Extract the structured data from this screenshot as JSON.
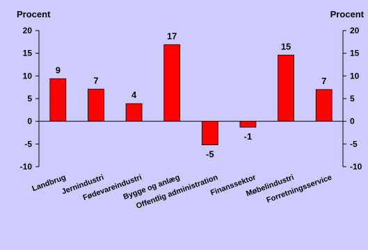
{
  "chart_data": {
    "type": "bar",
    "categories": [
      "Landbrug",
      "Jernindustri",
      "Fødevareindustri",
      "Bygge og anlæg",
      "Offentlig administration",
      "Finanssektor",
      "Møbelindustri",
      "Forretningsservice"
    ],
    "values": [
      9.4,
      7.1,
      3.9,
      16.9,
      -5.2,
      -1.3,
      14.6,
      7.0
    ],
    "data_labels": [
      "9",
      "7",
      "4",
      "17",
      "-5",
      "-1",
      "15",
      "7"
    ],
    "ylabel_left": "Procent",
    "ylabel_right": "Procent",
    "ylim": [
      -10,
      20
    ],
    "yticks": [
      20,
      15,
      10,
      5,
      0,
      -5,
      -10
    ],
    "grid": false,
    "legend": "none",
    "bar_color": "#ff0000",
    "background_color": "#ccccff"
  }
}
